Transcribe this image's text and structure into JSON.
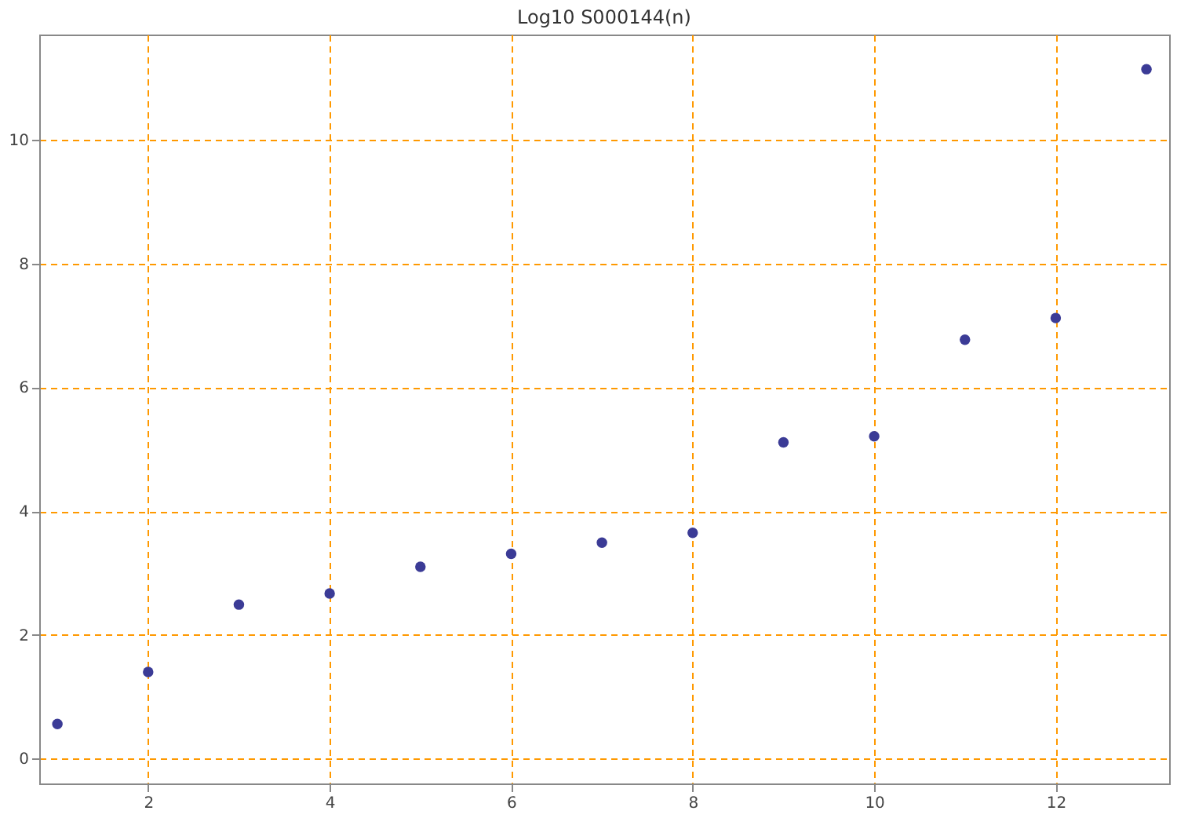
{
  "chart_data": {
    "type": "scatter",
    "title": "Log10 S000144(n)",
    "x": [
      1,
      2,
      3,
      4,
      5,
      6,
      7,
      8,
      9,
      10,
      11,
      12,
      13
    ],
    "series": [
      {
        "color": "#3b3b96",
        "values": [
          0.56,
          1.4,
          2.49,
          2.67,
          3.1,
          3.31,
          3.49,
          3.65,
          5.11,
          5.21,
          6.77,
          7.12,
          11.14
        ]
      }
    ],
    "xlim": [
      0.8,
      13.25
    ],
    "ylim": [
      -0.4,
      11.7
    ],
    "xticks": [
      2,
      4,
      6,
      8,
      10,
      12
    ],
    "yticks": [
      0,
      2,
      4,
      6,
      8,
      10
    ],
    "grid": true,
    "marker": "circle"
  }
}
